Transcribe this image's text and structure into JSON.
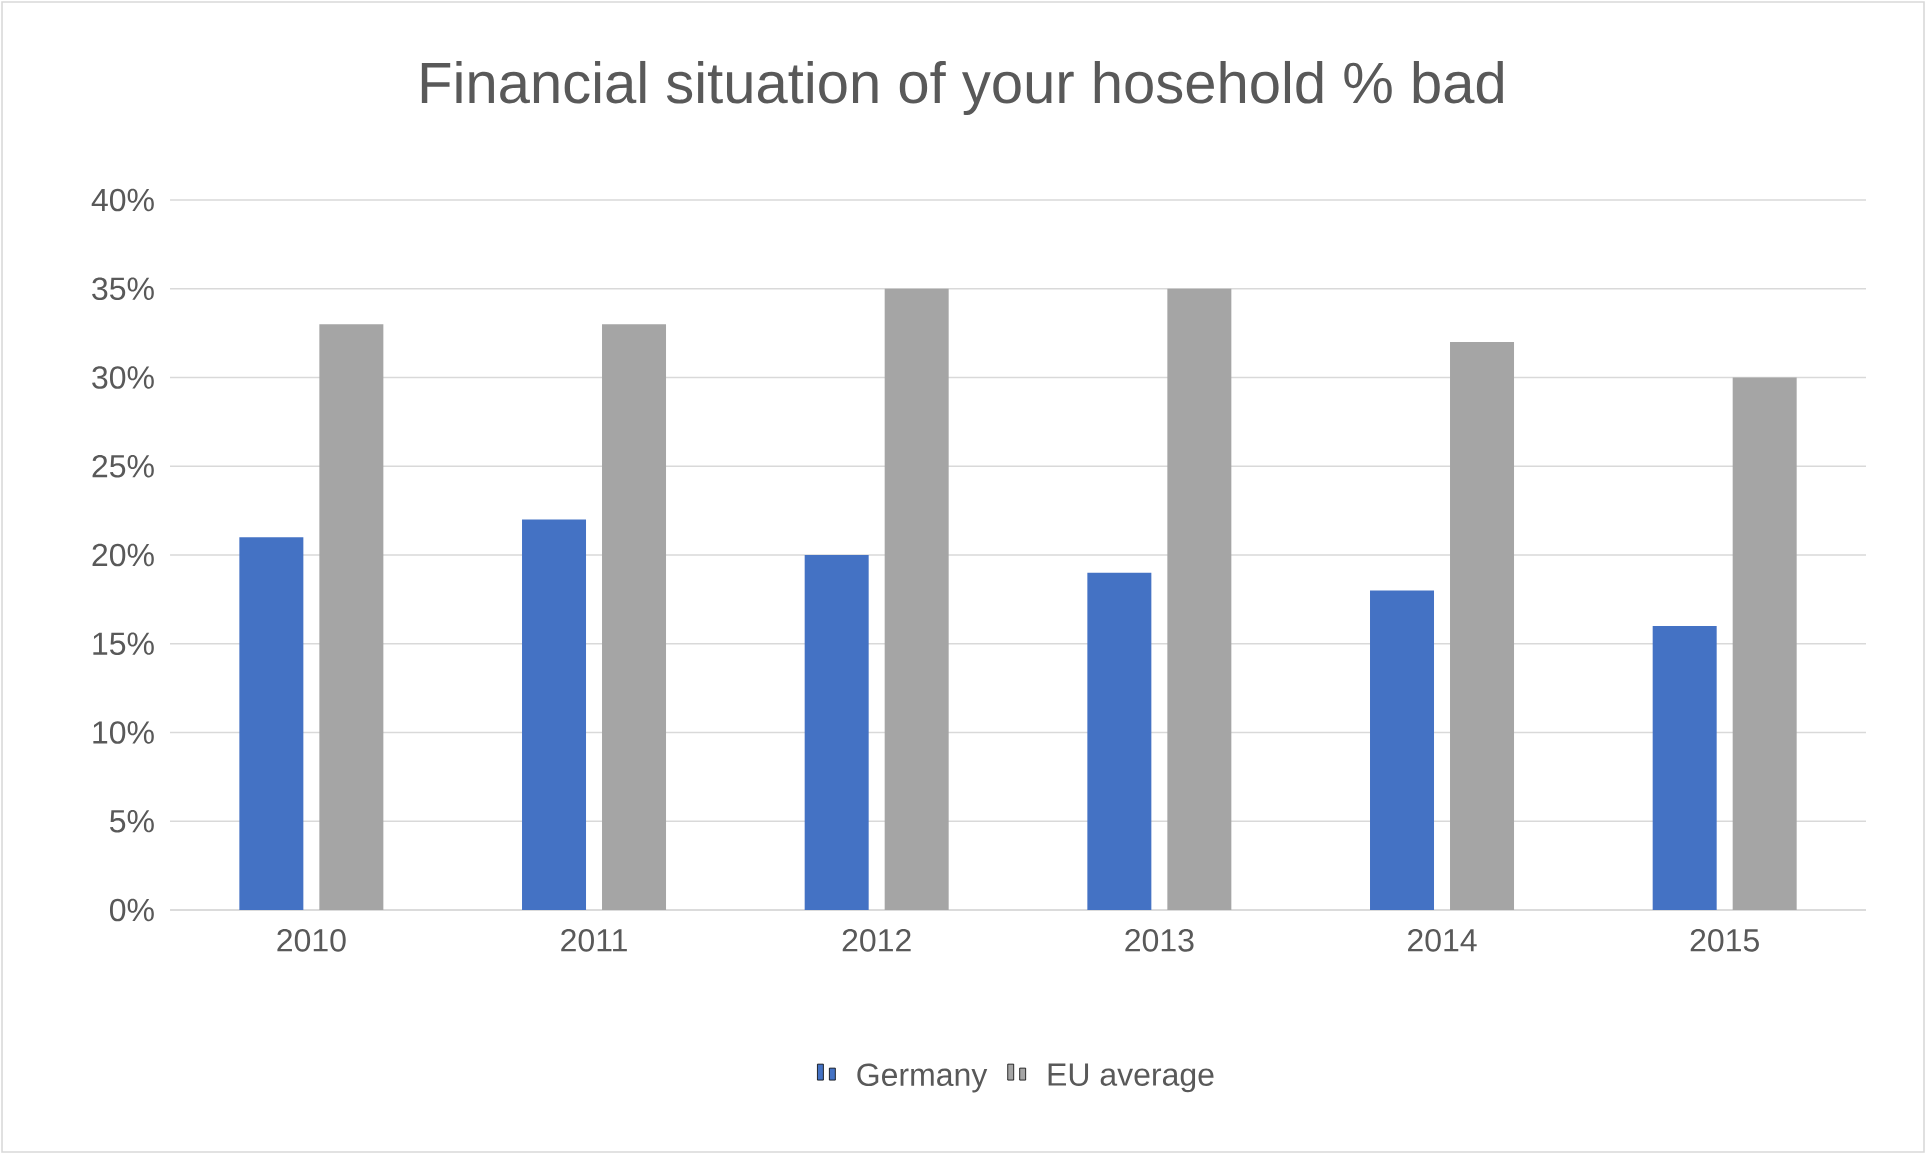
{
  "chart_data": {
    "type": "bar",
    "title": "Financial situation of your hosehold % bad",
    "categories": [
      "2010",
      "2011",
      "2012",
      "2013",
      "2014",
      "2015"
    ],
    "series": [
      {
        "name": "Germany",
        "color": "#4472c4",
        "values": [
          21,
          22,
          20,
          19,
          18,
          16
        ]
      },
      {
        "name": "EU average",
        "color": "#a5a5a5",
        "values": [
          33,
          33,
          35,
          35,
          32,
          30
        ]
      }
    ],
    "ylim": [
      0,
      40
    ],
    "yticks": [
      {
        "value": 0,
        "label": "0%"
      },
      {
        "value": 5,
        "label": "5%"
      },
      {
        "value": 10,
        "label": "10%"
      },
      {
        "value": 15,
        "label": "15%"
      },
      {
        "value": 20,
        "label": "20%"
      },
      {
        "value": 25,
        "label": "25%"
      },
      {
        "value": 30,
        "label": "30%"
      },
      {
        "value": 35,
        "label": "35%"
      },
      {
        "value": 40,
        "label": "40%"
      }
    ],
    "grid": "y",
    "legend": "bottom"
  }
}
